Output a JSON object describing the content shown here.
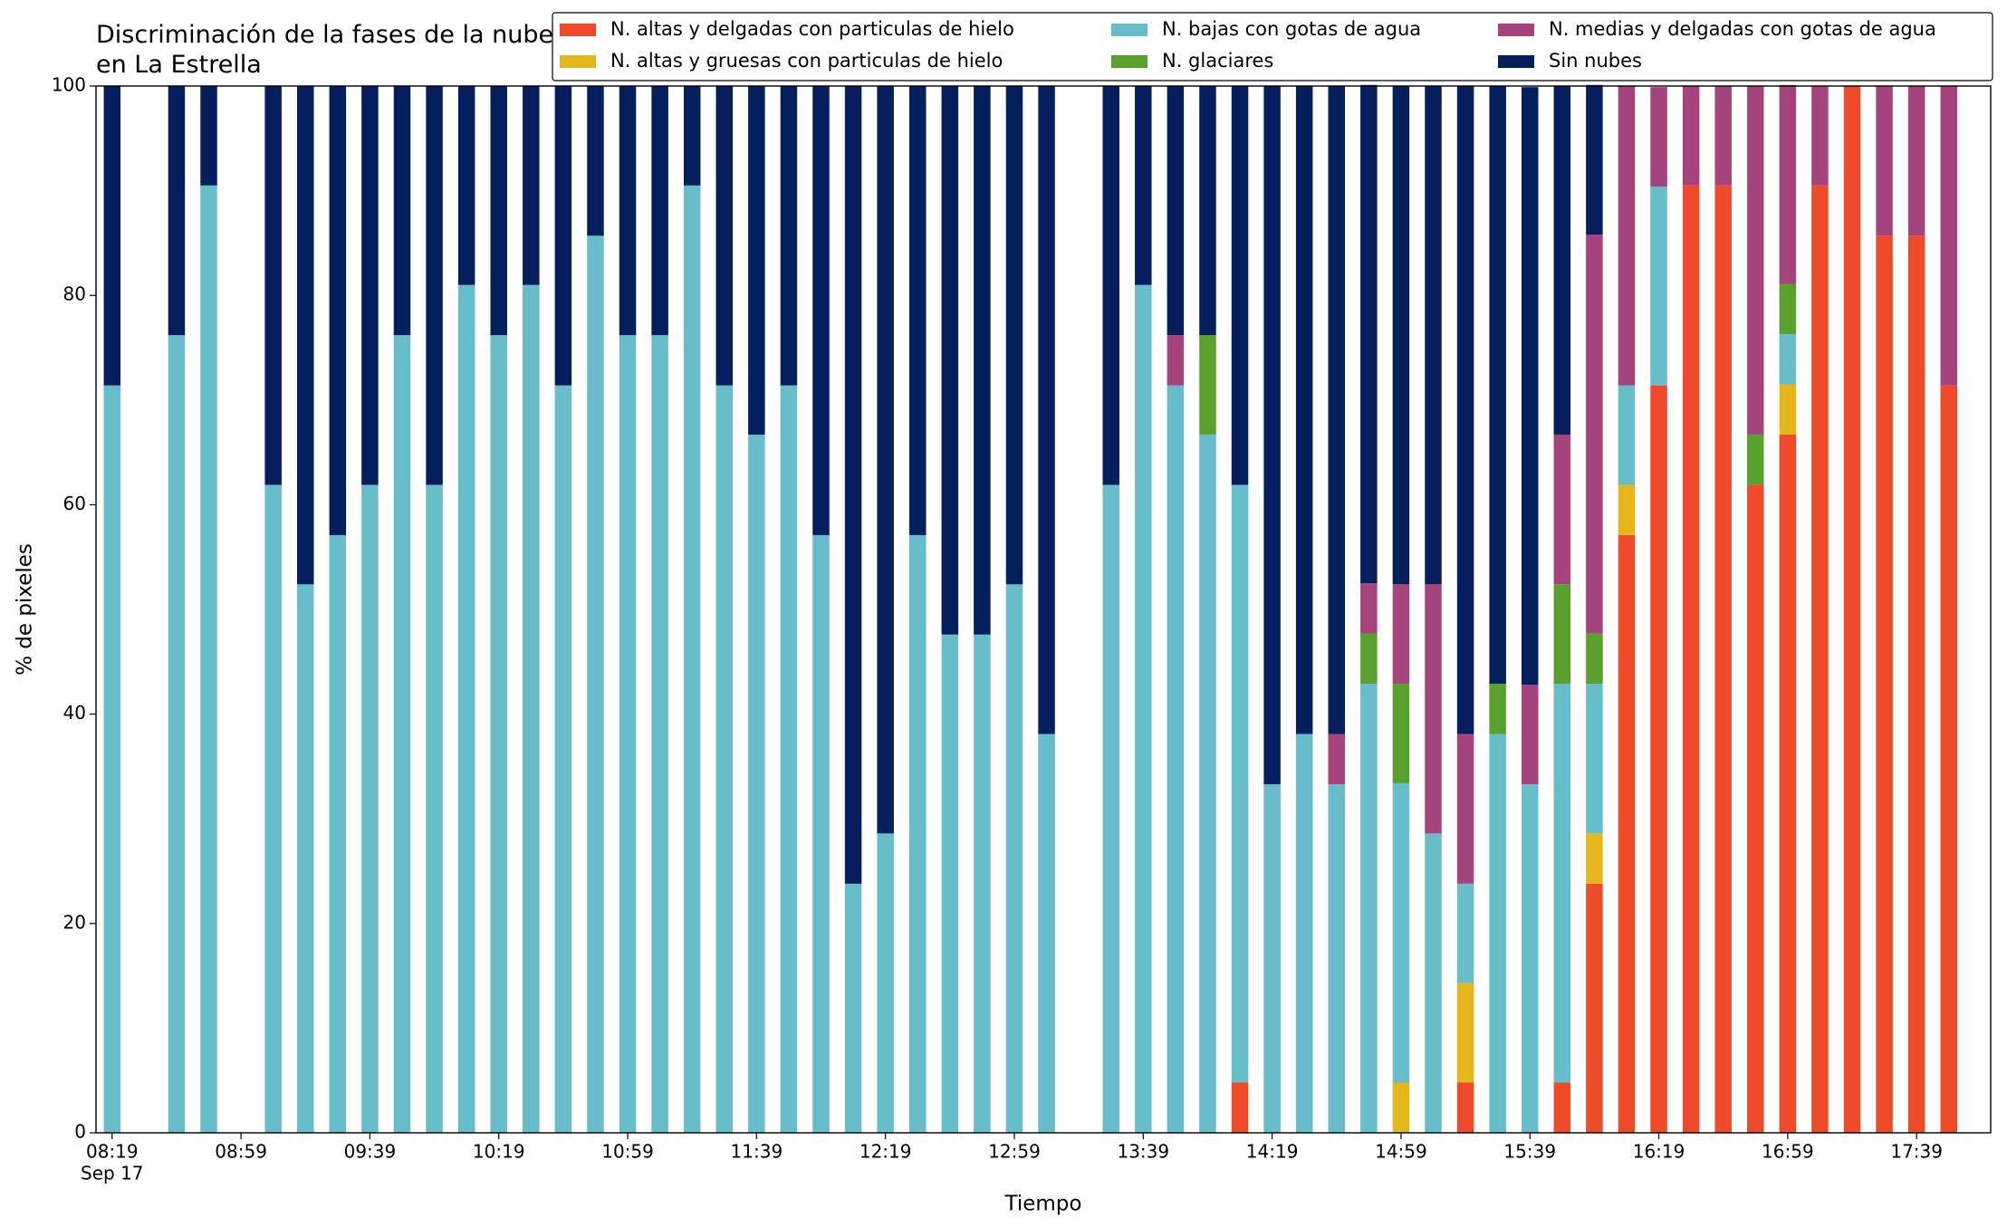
{
  "chart_data": {
    "type": "stacked_bar",
    "title": "Discriminación de la fases de la nube en La Estrella",
    "xlabel": "Tiempo",
    "ylabel": "% de pixeles",
    "x": [
      "08:19",
      "08:39",
      "08:49",
      "09:09",
      "09:19",
      "09:29",
      "09:39",
      "09:49",
      "09:59",
      "10:09",
      "10:19",
      "10:29",
      "10:39",
      "10:49",
      "10:59",
      "11:09",
      "11:19",
      "11:29",
      "11:39",
      "11:49",
      "11:59",
      "12:09",
      "12:19",
      "12:29",
      "12:39",
      "12:49",
      "12:59",
      "13:09",
      "13:29",
      "13:39",
      "13:49",
      "13:59",
      "14:09",
      "14:19",
      "14:29",
      "14:39",
      "14:49",
      "14:59",
      "15:09",
      "15:19",
      "15:29",
      "15:39",
      "15:49",
      "15:59",
      "16:09",
      "16:19",
      "16:29",
      "16:39",
      "16:49",
      "16:59",
      "17:09",
      "17:19",
      "17:29",
      "17:39",
      "17:49"
    ],
    "xlim": [
      "08:14",
      "18:02"
    ],
    "xticks": [
      "08:19",
      "08:59",
      "09:39",
      "10:19",
      "10:59",
      "11:39",
      "12:19",
      "12:59",
      "13:39",
      "14:19",
      "14:59",
      "15:39",
      "16:19",
      "16:59",
      "17:39"
    ],
    "xtick_date": "Sep 17",
    "ylim": [
      0,
      100
    ],
    "yticks": [
      0,
      20,
      40,
      60,
      80,
      100
    ],
    "legend": "upper right",
    "series": [
      {
        "name": "N. altas y delgadas con particulas de hielo",
        "color": "#ef4b2b",
        "values": [
          0,
          0,
          0,
          0,
          0,
          0,
          0,
          0,
          0,
          0,
          0,
          0,
          0,
          0,
          0,
          0,
          0,
          0,
          0,
          0,
          0,
          0,
          0,
          0,
          0,
          0,
          0,
          0,
          0,
          0,
          0,
          0,
          4.8,
          0,
          0,
          0,
          0,
          0,
          0,
          4.8,
          0,
          0,
          4.8,
          23.8,
          57.1,
          71.4,
          90.5,
          90.5,
          61.9,
          66.7,
          90.5,
          100,
          85.7,
          85.7,
          71.4
        ]
      },
      {
        "name": "N. altas y gruesas con particulas de hielo",
        "color": "#e6b71a",
        "values": [
          0,
          0,
          0,
          0,
          0,
          0,
          0,
          0,
          0,
          0,
          0,
          0,
          0,
          0,
          0,
          0,
          0,
          0,
          0,
          0,
          0,
          0,
          0,
          0,
          0,
          0,
          0,
          0,
          0,
          0,
          0,
          0,
          0,
          0,
          0,
          0,
          0,
          4.8,
          0,
          9.5,
          0,
          0,
          0,
          4.8,
          4.8,
          0,
          0,
          0,
          0,
          4.8,
          0,
          0,
          0,
          0,
          0
        ]
      },
      {
        "name": "N. bajas con gotas de agua",
        "color": "#67bdc9",
        "values": [
          71.4,
          76.2,
          90.5,
          61.9,
          52.4,
          57.1,
          61.9,
          76.2,
          61.9,
          81,
          76.2,
          81,
          71.4,
          85.7,
          76.2,
          76.2,
          90.5,
          71.4,
          66.7,
          71.4,
          57.1,
          23.8,
          28.6,
          57.1,
          47.6,
          47.6,
          52.4,
          38.1,
          61.9,
          81,
          71.4,
          66.7,
          57.1,
          33.3,
          38.1,
          33.3,
          42.9,
          28.6,
          28.6,
          9.5,
          38.1,
          33.3,
          38.1,
          14.3,
          9.5,
          19,
          0,
          0,
          0,
          4.8,
          0,
          0,
          0,
          0,
          0
        ]
      },
      {
        "name": "N. glaciares",
        "color": "#5aa02c",
        "values": [
          0,
          0,
          0,
          0,
          0,
          0,
          0,
          0,
          0,
          0,
          0,
          0,
          0,
          0,
          0,
          0,
          0,
          0,
          0,
          0,
          0,
          0,
          0,
          0,
          0,
          0,
          0,
          0,
          0,
          0,
          0,
          9.5,
          0,
          0,
          0,
          0,
          4.8,
          9.5,
          0,
          0,
          4.8,
          0,
          9.5,
          4.8,
          0,
          0,
          0,
          0,
          4.8,
          4.8,
          0,
          0,
          0,
          0,
          0
        ]
      },
      {
        "name": "N. medias y delgadas con gotas de agua",
        "color": "#a5447c",
        "values": [
          0,
          0,
          0,
          0,
          0,
          0,
          0,
          0,
          0,
          0,
          0,
          0,
          0,
          0,
          0,
          0,
          0,
          0,
          0,
          0,
          0,
          0,
          0,
          0,
          0,
          0,
          0,
          0,
          0,
          0,
          4.8,
          0,
          0,
          0,
          0,
          4.8,
          4.8,
          9.5,
          23.8,
          14.3,
          0,
          9.5,
          14.3,
          38.1,
          28.6,
          9.5,
          9.5,
          9.5,
          33.3,
          19,
          9.5,
          0,
          14.3,
          14.3,
          28.6
        ]
      },
      {
        "name": "Sin nubes",
        "color": "#041e5e",
        "values": [
          28.6,
          23.8,
          9.5,
          38.1,
          47.6,
          42.9,
          38.1,
          23.8,
          38.1,
          19,
          23.8,
          19,
          28.6,
          14.3,
          23.8,
          23.8,
          9.5,
          28.6,
          33.3,
          28.6,
          42.9,
          76.2,
          71.4,
          42.9,
          52.4,
          52.4,
          47.6,
          61.9,
          38.1,
          19,
          23.8,
          23.8,
          38.1,
          66.7,
          61.9,
          61.9,
          47.6,
          47.6,
          47.6,
          61.9,
          57.1,
          57.1,
          33.3,
          14.3,
          0,
          0,
          0,
          0,
          0,
          0,
          0,
          0,
          0,
          0,
          0
        ]
      }
    ]
  }
}
